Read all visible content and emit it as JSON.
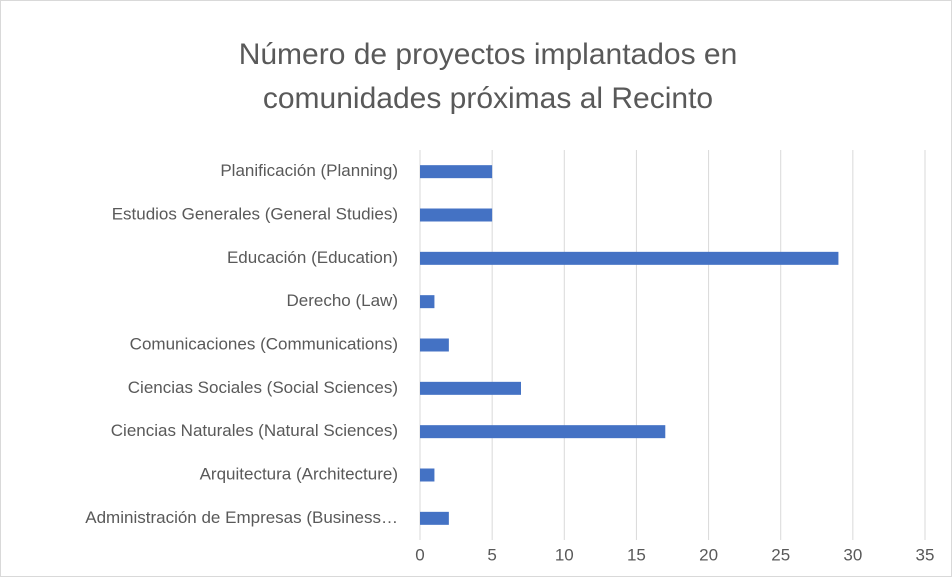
{
  "chart_data": {
    "type": "bar",
    "orientation": "horizontal",
    "title": [
      "Número de proyectos implantados en",
      "comunidades próximas al Recinto"
    ],
    "categories": [
      "Administración de Empresas (Business…",
      "Arquitectura (Architecture)",
      "Ciencias Naturales (Natural Sciences)",
      "Ciencias Sociales (Social Sciences)",
      "Comunicaciones (Communications)",
      "Derecho (Law)",
      "Educación (Education)",
      "Estudios Generales (General Studies)",
      "Planificación (Planning)"
    ],
    "values": [
      2,
      1,
      17,
      7,
      2,
      1,
      29,
      5,
      5
    ],
    "color": "#4472c4",
    "xlim": [
      0,
      35
    ],
    "xticks": [
      0,
      5,
      10,
      15,
      20,
      25,
      30,
      35
    ],
    "grid": true
  }
}
